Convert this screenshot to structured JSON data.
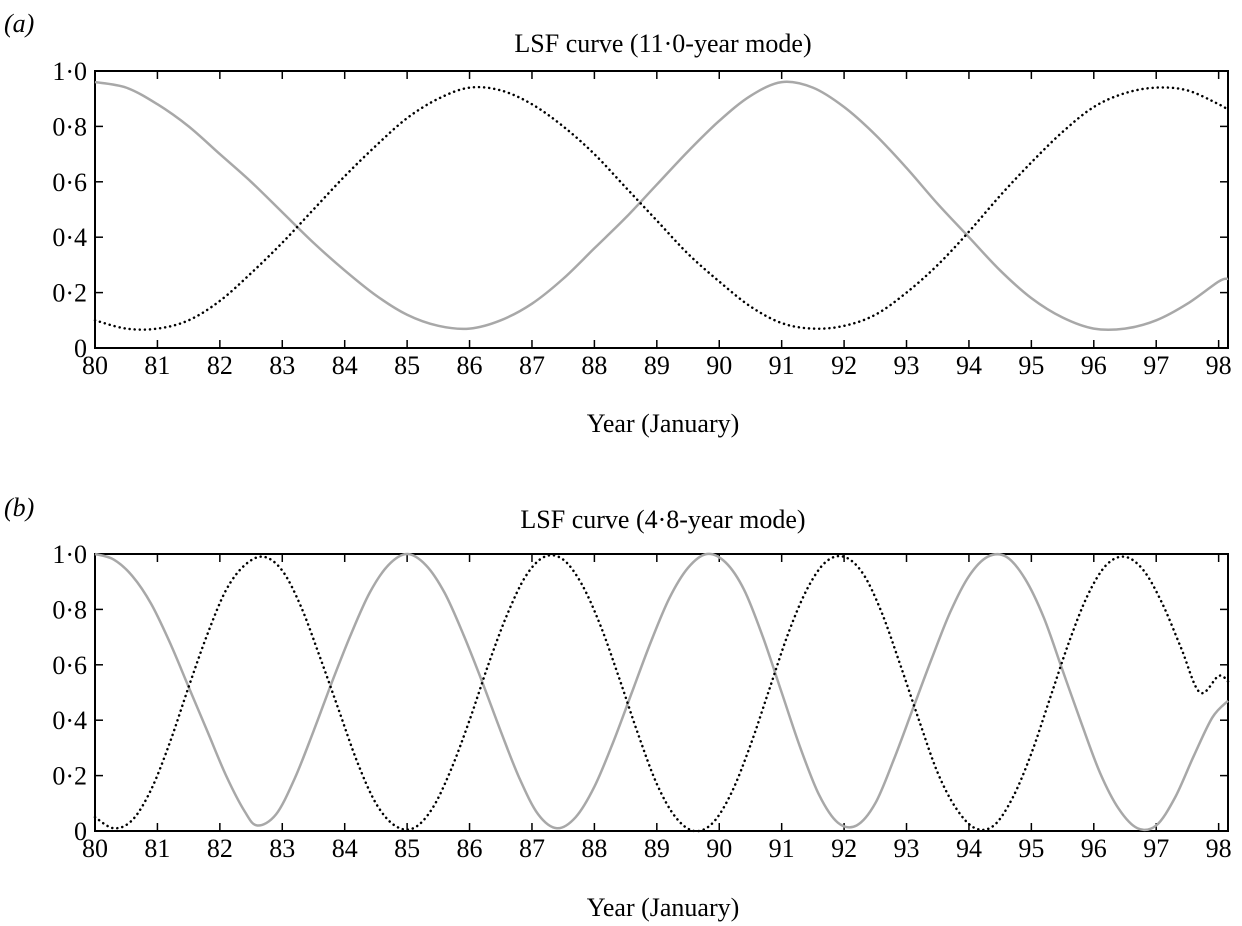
{
  "chart_data": [
    {
      "type": "line",
      "panel_label": "(a)",
      "title": "LSF curve (11·0-year mode)",
      "xlabel": "Year (January)",
      "ylabel": "",
      "xlim": [
        80,
        98.15
      ],
      "ylim": [
        0,
        1
      ],
      "grid": false,
      "xticks": [
        80,
        81,
        82,
        83,
        84,
        85,
        86,
        87,
        88,
        89,
        90,
        91,
        92,
        93,
        94,
        95,
        96,
        97,
        98
      ],
      "xtick_labels": [
        "80",
        "81",
        "82",
        "83",
        "84",
        "85",
        "86",
        "87",
        "88",
        "89",
        "90",
        "91",
        "92",
        "93",
        "94",
        "95",
        "96",
        "97",
        "98"
      ],
      "yticks": [
        0,
        0.2,
        0.4,
        0.6,
        0.8,
        1.0
      ],
      "ytick_labels": [
        "0",
        "0·2",
        "0·4",
        "0·6",
        "0·8",
        "1·0"
      ],
      "series": [
        {
          "style": "solid",
          "color": "#a8a8a8",
          "x": [
            80,
            80.5,
            81,
            81.5,
            82,
            82.5,
            83,
            83.5,
            84,
            84.5,
            85,
            85.5,
            86,
            86.5,
            87,
            87.5,
            88,
            88.5,
            89,
            89.5,
            90,
            90.5,
            91,
            91.5,
            92,
            92.5,
            93,
            93.5,
            94,
            94.5,
            95,
            95.5,
            96,
            96.5,
            97,
            97.5,
            98,
            98.15
          ],
          "y": [
            0.96,
            0.94,
            0.88,
            0.8,
            0.7,
            0.6,
            0.49,
            0.38,
            0.28,
            0.19,
            0.12,
            0.08,
            0.07,
            0.1,
            0.16,
            0.25,
            0.36,
            0.47,
            0.59,
            0.71,
            0.82,
            0.91,
            0.96,
            0.94,
            0.87,
            0.77,
            0.65,
            0.52,
            0.4,
            0.28,
            0.18,
            0.11,
            0.07,
            0.07,
            0.1,
            0.16,
            0.24,
            0.25
          ]
        },
        {
          "style": "dotted",
          "color": "#000000",
          "x": [
            80,
            80.5,
            81,
            81.5,
            82,
            82.5,
            83,
            83.5,
            84,
            84.5,
            85,
            85.5,
            86,
            86.5,
            87,
            87.5,
            88,
            88.5,
            89,
            89.5,
            90,
            90.5,
            91,
            91.5,
            92,
            92.5,
            93,
            93.5,
            94,
            94.5,
            95,
            95.5,
            96,
            96.5,
            97,
            97.5,
            98,
            98.15
          ],
          "y": [
            0.1,
            0.07,
            0.07,
            0.1,
            0.17,
            0.27,
            0.38,
            0.5,
            0.62,
            0.73,
            0.83,
            0.9,
            0.94,
            0.93,
            0.88,
            0.8,
            0.7,
            0.58,
            0.46,
            0.34,
            0.24,
            0.15,
            0.09,
            0.07,
            0.08,
            0.12,
            0.2,
            0.3,
            0.42,
            0.55,
            0.67,
            0.78,
            0.87,
            0.92,
            0.94,
            0.93,
            0.88,
            0.86
          ]
        }
      ]
    },
    {
      "type": "line",
      "panel_label": "(b)",
      "title": "LSF curve (4·8-year mode)",
      "xlabel": "Year (January)",
      "ylabel": "",
      "xlim": [
        80,
        98.15
      ],
      "ylim": [
        0,
        1
      ],
      "grid": false,
      "xticks": [
        80,
        81,
        82,
        83,
        84,
        85,
        86,
        87,
        88,
        89,
        90,
        91,
        92,
        93,
        94,
        95,
        96,
        97,
        98
      ],
      "xtick_labels": [
        "80",
        "81",
        "82",
        "83",
        "84",
        "85",
        "86",
        "87",
        "88",
        "89",
        "90",
        "91",
        "92",
        "93",
        "94",
        "95",
        "96",
        "97",
        "98"
      ],
      "yticks": [
        0,
        0.2,
        0.4,
        0.6,
        0.8,
        1.0
      ],
      "ytick_labels": [
        "0",
        "0·2",
        "0·4",
        "0·6",
        "0·8",
        "1·0"
      ],
      "series": [
        {
          "style": "solid",
          "color": "#a8a8a8",
          "x": [
            80,
            80.3,
            80.6,
            80.9,
            81.2,
            81.5,
            81.8,
            82.1,
            82.4,
            82.6,
            82.9,
            83.2,
            83.5,
            83.8,
            84.1,
            84.4,
            84.7,
            85.0,
            85.3,
            85.6,
            85.9,
            86.2,
            86.5,
            86.8,
            87.1,
            87.4,
            87.7,
            88.0,
            88.3,
            88.6,
            88.9,
            89.2,
            89.5,
            89.8,
            90.1,
            90.4,
            90.7,
            91.0,
            91.3,
            91.6,
            91.9,
            92.2,
            92.5,
            92.8,
            93.1,
            93.4,
            93.7,
            94.0,
            94.3,
            94.6,
            94.9,
            95.2,
            95.5,
            95.8,
            96.1,
            96.4,
            96.7,
            97.0,
            97.3,
            97.6,
            97.9,
            98.15
          ],
          "y": [
            1.0,
            0.98,
            0.92,
            0.82,
            0.68,
            0.52,
            0.36,
            0.2,
            0.07,
            0.02,
            0.06,
            0.19,
            0.36,
            0.54,
            0.71,
            0.86,
            0.96,
            1.0,
            0.96,
            0.86,
            0.71,
            0.54,
            0.36,
            0.19,
            0.06,
            0.01,
            0.05,
            0.16,
            0.32,
            0.5,
            0.68,
            0.84,
            0.95,
            1.0,
            0.97,
            0.87,
            0.7,
            0.5,
            0.3,
            0.13,
            0.03,
            0.02,
            0.1,
            0.26,
            0.44,
            0.62,
            0.79,
            0.92,
            0.99,
            0.99,
            0.91,
            0.77,
            0.58,
            0.39,
            0.21,
            0.08,
            0.01,
            0.02,
            0.12,
            0.27,
            0.41,
            0.47
          ]
        },
        {
          "style": "dotted",
          "color": "#000000",
          "x": [
            80,
            80.3,
            80.6,
            80.9,
            81.2,
            81.5,
            81.8,
            82.1,
            82.4,
            82.7,
            83.0,
            83.3,
            83.6,
            83.9,
            84.2,
            84.5,
            84.8,
            85.1,
            85.4,
            85.7,
            86.0,
            86.3,
            86.6,
            86.9,
            87.2,
            87.5,
            87.8,
            88.1,
            88.4,
            88.7,
            89.0,
            89.3,
            89.6,
            89.9,
            90.2,
            90.5,
            90.8,
            91.1,
            91.4,
            91.7,
            92.0,
            92.3,
            92.6,
            92.9,
            93.2,
            93.5,
            93.8,
            94.1,
            94.4,
            94.7,
            95.0,
            95.3,
            95.6,
            95.9,
            96.2,
            96.5,
            96.8,
            97.1,
            97.4,
            97.7,
            98.0,
            98.15
          ],
          "y": [
            0.05,
            0.01,
            0.04,
            0.15,
            0.32,
            0.52,
            0.71,
            0.87,
            0.96,
            0.99,
            0.94,
            0.81,
            0.63,
            0.44,
            0.25,
            0.1,
            0.02,
            0.01,
            0.08,
            0.22,
            0.4,
            0.6,
            0.78,
            0.92,
            0.99,
            0.98,
            0.89,
            0.74,
            0.55,
            0.35,
            0.17,
            0.05,
            0.0,
            0.03,
            0.14,
            0.31,
            0.51,
            0.71,
            0.87,
            0.97,
            0.99,
            0.93,
            0.79,
            0.6,
            0.4,
            0.21,
            0.08,
            0.01,
            0.02,
            0.12,
            0.28,
            0.48,
            0.68,
            0.85,
            0.96,
            0.99,
            0.94,
            0.82,
            0.66,
            0.5,
            0.56,
            0.54
          ]
        }
      ]
    }
  ]
}
